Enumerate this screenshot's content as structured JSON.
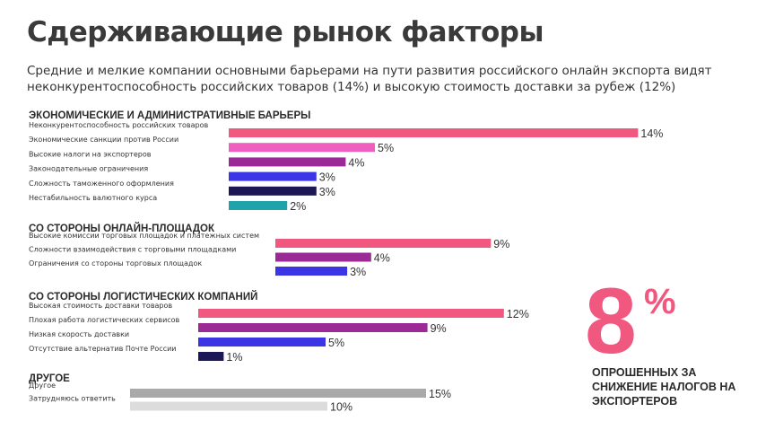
{
  "page": {
    "title": "Сдерживающие рынок факторы",
    "subtitle": "Средние и мелкие компании основными барьерами на пути развития российского онлайн экспорта видят неконкурентоспособность российских товаров (14%) и высокую стоимость доставки за рубеж (12%)"
  },
  "callout": {
    "value": "8",
    "unit": "%",
    "text": "опрошенных за снижение налогов на экспортеров"
  },
  "chart_data": {
    "type": "bar",
    "orientation": "horizontal",
    "value_suffix": "%",
    "groups": [
      {
        "name": "ЭКОНОМИЧЕСКИЕ И АДМИНИСТРАТИВНЫЕ БАРЬЕРЫ",
        "items": [
          {
            "label": "Неконкурентоспособность российских товаров",
            "value": 14,
            "color": "#f0587f"
          },
          {
            "label": "Экономические санкции против России",
            "value": 5,
            "color": "#ee5fc0"
          },
          {
            "label": "Высокие налоги на экспортеров",
            "value": 4,
            "color": "#9b2a97"
          },
          {
            "label": "Законодательные ограничения",
            "value": 3,
            "color": "#3c35e6"
          },
          {
            "label": "Сложность таможенного оформления",
            "value": 3,
            "color": "#1c1856"
          },
          {
            "label": "Нестабильность валютного курса",
            "value": 2,
            "color": "#1fa3a8"
          }
        ]
      },
      {
        "name": "СО СТОРОНЫ ОНЛАЙН-ПЛОЩАДОК",
        "items": [
          {
            "label": "Высокие комиссии торговых площадок и платежных систем",
            "value": 9,
            "color": "#f0587f"
          },
          {
            "label": "Сложности взаимодействия с торговыми площадками",
            "value": 4,
            "color": "#9b2a97"
          },
          {
            "label": "Ограничения со стороны торговых площадок",
            "value": 3,
            "color": "#3c35e6"
          }
        ]
      },
      {
        "name": "СО СТОРОНЫ ЛОГИСТИЧЕСКИХ КОМПАНИЙ",
        "items": [
          {
            "label": "Высокая стоимость доставки товаров",
            "value": 12,
            "color": "#f0587f"
          },
          {
            "label": "Плохая работа логистических сервисов",
            "value": 9,
            "color": "#9b2a97"
          },
          {
            "label": "Низкая скорость доставки",
            "value": 5,
            "color": "#3c35e6"
          },
          {
            "label": "Отсутствие альтернатив Почте России",
            "value": 1,
            "color": "#1c1856"
          }
        ]
      },
      {
        "name": "ДРУГОЕ",
        "items": [
          {
            "label": "Другое",
            "value": 15,
            "color": "#a9a9a9"
          },
          {
            "label": "Затрудняюсь ответить",
            "value": 10,
            "color": "#dcdcdc"
          }
        ]
      }
    ]
  }
}
